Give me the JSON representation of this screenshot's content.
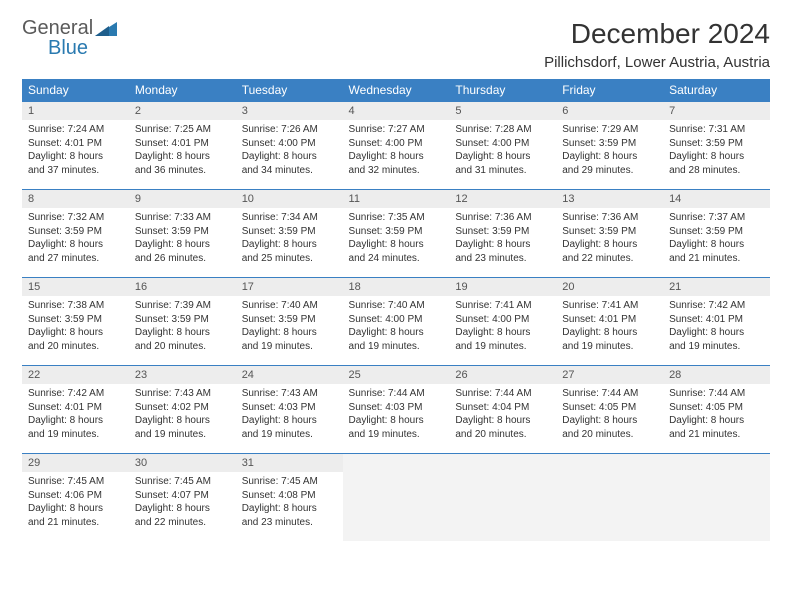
{
  "brand": {
    "line1": "General",
    "line2": "Blue",
    "logo_color": "#2a7ab0",
    "line1_color": "#5a5a5a"
  },
  "header": {
    "title": "December 2024",
    "location": "Pillichsdorf, Lower Austria, Austria"
  },
  "style": {
    "header_bg": "#3a80c3",
    "header_fg": "#ffffff",
    "daynum_bg": "#ededed",
    "border_color": "#3a80c3",
    "body_font_size": 10,
    "header_font_size": 12,
    "title_font_size": 28
  },
  "weekdays": [
    "Sunday",
    "Monday",
    "Tuesday",
    "Wednesday",
    "Thursday",
    "Friday",
    "Saturday"
  ],
  "weeks": [
    [
      {
        "day": "1",
        "sunrise": "Sunrise: 7:24 AM",
        "sunset": "Sunset: 4:01 PM",
        "daylight1": "Daylight: 8 hours",
        "daylight2": "and 37 minutes."
      },
      {
        "day": "2",
        "sunrise": "Sunrise: 7:25 AM",
        "sunset": "Sunset: 4:01 PM",
        "daylight1": "Daylight: 8 hours",
        "daylight2": "and 36 minutes."
      },
      {
        "day": "3",
        "sunrise": "Sunrise: 7:26 AM",
        "sunset": "Sunset: 4:00 PM",
        "daylight1": "Daylight: 8 hours",
        "daylight2": "and 34 minutes."
      },
      {
        "day": "4",
        "sunrise": "Sunrise: 7:27 AM",
        "sunset": "Sunset: 4:00 PM",
        "daylight1": "Daylight: 8 hours",
        "daylight2": "and 32 minutes."
      },
      {
        "day": "5",
        "sunrise": "Sunrise: 7:28 AM",
        "sunset": "Sunset: 4:00 PM",
        "daylight1": "Daylight: 8 hours",
        "daylight2": "and 31 minutes."
      },
      {
        "day": "6",
        "sunrise": "Sunrise: 7:29 AM",
        "sunset": "Sunset: 3:59 PM",
        "daylight1": "Daylight: 8 hours",
        "daylight2": "and 29 minutes."
      },
      {
        "day": "7",
        "sunrise": "Sunrise: 7:31 AM",
        "sunset": "Sunset: 3:59 PM",
        "daylight1": "Daylight: 8 hours",
        "daylight2": "and 28 minutes."
      }
    ],
    [
      {
        "day": "8",
        "sunrise": "Sunrise: 7:32 AM",
        "sunset": "Sunset: 3:59 PM",
        "daylight1": "Daylight: 8 hours",
        "daylight2": "and 27 minutes."
      },
      {
        "day": "9",
        "sunrise": "Sunrise: 7:33 AM",
        "sunset": "Sunset: 3:59 PM",
        "daylight1": "Daylight: 8 hours",
        "daylight2": "and 26 minutes."
      },
      {
        "day": "10",
        "sunrise": "Sunrise: 7:34 AM",
        "sunset": "Sunset: 3:59 PM",
        "daylight1": "Daylight: 8 hours",
        "daylight2": "and 25 minutes."
      },
      {
        "day": "11",
        "sunrise": "Sunrise: 7:35 AM",
        "sunset": "Sunset: 3:59 PM",
        "daylight1": "Daylight: 8 hours",
        "daylight2": "and 24 minutes."
      },
      {
        "day": "12",
        "sunrise": "Sunrise: 7:36 AM",
        "sunset": "Sunset: 3:59 PM",
        "daylight1": "Daylight: 8 hours",
        "daylight2": "and 23 minutes."
      },
      {
        "day": "13",
        "sunrise": "Sunrise: 7:36 AM",
        "sunset": "Sunset: 3:59 PM",
        "daylight1": "Daylight: 8 hours",
        "daylight2": "and 22 minutes."
      },
      {
        "day": "14",
        "sunrise": "Sunrise: 7:37 AM",
        "sunset": "Sunset: 3:59 PM",
        "daylight1": "Daylight: 8 hours",
        "daylight2": "and 21 minutes."
      }
    ],
    [
      {
        "day": "15",
        "sunrise": "Sunrise: 7:38 AM",
        "sunset": "Sunset: 3:59 PM",
        "daylight1": "Daylight: 8 hours",
        "daylight2": "and 20 minutes."
      },
      {
        "day": "16",
        "sunrise": "Sunrise: 7:39 AM",
        "sunset": "Sunset: 3:59 PM",
        "daylight1": "Daylight: 8 hours",
        "daylight2": "and 20 minutes."
      },
      {
        "day": "17",
        "sunrise": "Sunrise: 7:40 AM",
        "sunset": "Sunset: 3:59 PM",
        "daylight1": "Daylight: 8 hours",
        "daylight2": "and 19 minutes."
      },
      {
        "day": "18",
        "sunrise": "Sunrise: 7:40 AM",
        "sunset": "Sunset: 4:00 PM",
        "daylight1": "Daylight: 8 hours",
        "daylight2": "and 19 minutes."
      },
      {
        "day": "19",
        "sunrise": "Sunrise: 7:41 AM",
        "sunset": "Sunset: 4:00 PM",
        "daylight1": "Daylight: 8 hours",
        "daylight2": "and 19 minutes."
      },
      {
        "day": "20",
        "sunrise": "Sunrise: 7:41 AM",
        "sunset": "Sunset: 4:01 PM",
        "daylight1": "Daylight: 8 hours",
        "daylight2": "and 19 minutes."
      },
      {
        "day": "21",
        "sunrise": "Sunrise: 7:42 AM",
        "sunset": "Sunset: 4:01 PM",
        "daylight1": "Daylight: 8 hours",
        "daylight2": "and 19 minutes."
      }
    ],
    [
      {
        "day": "22",
        "sunrise": "Sunrise: 7:42 AM",
        "sunset": "Sunset: 4:01 PM",
        "daylight1": "Daylight: 8 hours",
        "daylight2": "and 19 minutes."
      },
      {
        "day": "23",
        "sunrise": "Sunrise: 7:43 AM",
        "sunset": "Sunset: 4:02 PM",
        "daylight1": "Daylight: 8 hours",
        "daylight2": "and 19 minutes."
      },
      {
        "day": "24",
        "sunrise": "Sunrise: 7:43 AM",
        "sunset": "Sunset: 4:03 PM",
        "daylight1": "Daylight: 8 hours",
        "daylight2": "and 19 minutes."
      },
      {
        "day": "25",
        "sunrise": "Sunrise: 7:44 AM",
        "sunset": "Sunset: 4:03 PM",
        "daylight1": "Daylight: 8 hours",
        "daylight2": "and 19 minutes."
      },
      {
        "day": "26",
        "sunrise": "Sunrise: 7:44 AM",
        "sunset": "Sunset: 4:04 PM",
        "daylight1": "Daylight: 8 hours",
        "daylight2": "and 20 minutes."
      },
      {
        "day": "27",
        "sunrise": "Sunrise: 7:44 AM",
        "sunset": "Sunset: 4:05 PM",
        "daylight1": "Daylight: 8 hours",
        "daylight2": "and 20 minutes."
      },
      {
        "day": "28",
        "sunrise": "Sunrise: 7:44 AM",
        "sunset": "Sunset: 4:05 PM",
        "daylight1": "Daylight: 8 hours",
        "daylight2": "and 21 minutes."
      }
    ],
    [
      {
        "day": "29",
        "sunrise": "Sunrise: 7:45 AM",
        "sunset": "Sunset: 4:06 PM",
        "daylight1": "Daylight: 8 hours",
        "daylight2": "and 21 minutes."
      },
      {
        "day": "30",
        "sunrise": "Sunrise: 7:45 AM",
        "sunset": "Sunset: 4:07 PM",
        "daylight1": "Daylight: 8 hours",
        "daylight2": "and 22 minutes."
      },
      {
        "day": "31",
        "sunrise": "Sunrise: 7:45 AM",
        "sunset": "Sunset: 4:08 PM",
        "daylight1": "Daylight: 8 hours",
        "daylight2": "and 23 minutes."
      },
      {
        "empty": true
      },
      {
        "empty": true
      },
      {
        "empty": true
      },
      {
        "empty": true
      }
    ]
  ]
}
